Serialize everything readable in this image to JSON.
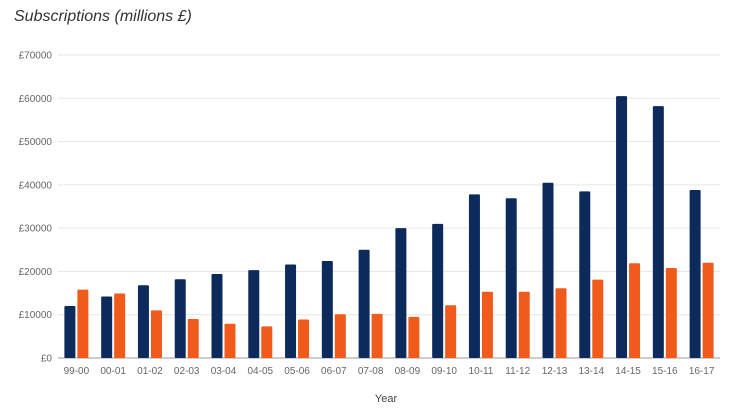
{
  "chart_data": {
    "type": "bar",
    "title": "Subscriptions (millions £)",
    "xlabel": "Year",
    "ylabel": "",
    "ylim": [
      0,
      70000
    ],
    "yticks": [
      "£0",
      "£10000",
      "£20000",
      "£30000",
      "£40000",
      "£50000",
      "£60000",
      "£70000"
    ],
    "grid": true,
    "legend": "none",
    "categories": [
      "99-00",
      "00-01",
      "01-02",
      "02-03",
      "03-04",
      "04-05",
      "05-06",
      "06-07",
      "07-08",
      "08-09",
      "09-10",
      "10-11",
      "11-12",
      "12-13",
      "13-14",
      "14-15",
      "15-16",
      "16-17"
    ],
    "series": [
      {
        "color": "#0d2a5c",
        "values": [
          12000,
          14200,
          16800,
          18200,
          19400,
          20300,
          21600,
          22400,
          25000,
          30000,
          31000,
          37800,
          36900,
          40500,
          38500,
          60500,
          58200,
          38800
        ]
      },
      {
        "color": "#f05a1a",
        "values": [
          15800,
          14900,
          11000,
          9000,
          7900,
          7300,
          8900,
          10100,
          10200,
          9500,
          12200,
          15300,
          15300,
          16100,
          18100,
          21900,
          20800,
          22000
        ]
      }
    ]
  }
}
